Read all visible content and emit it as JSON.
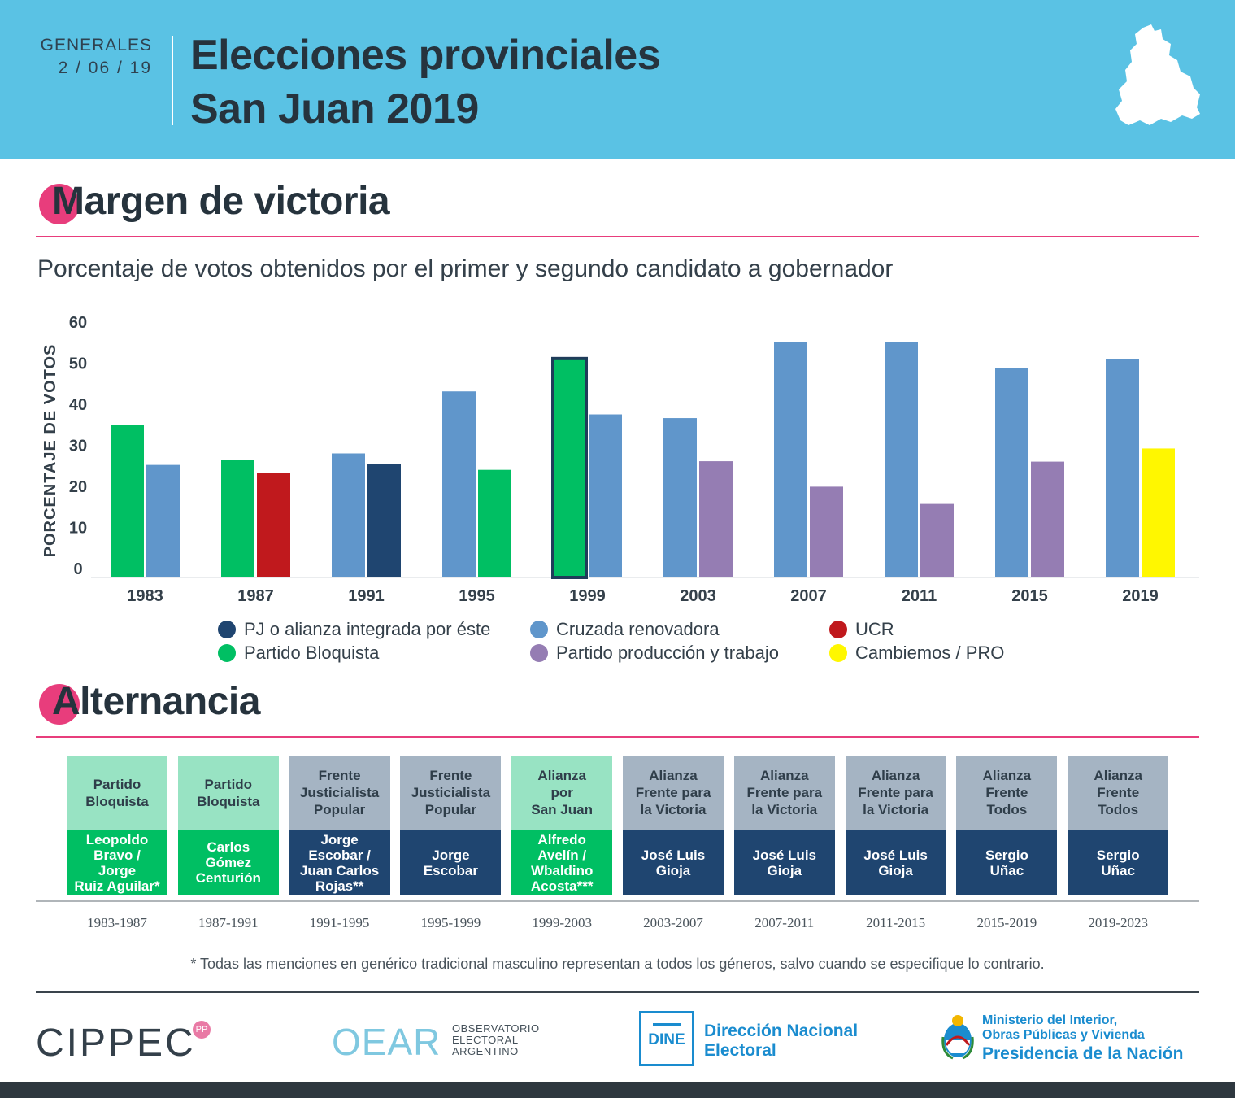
{
  "header": {
    "kicker": "GENERALES",
    "date": "2 / 06 / 19",
    "title_line1": "Elecciones provinciales",
    "title_line2": "San Juan 2019"
  },
  "section_margin": {
    "title": "Margen de victoria",
    "subtitle": "Porcentaje de votos obtenidos por el primer y segundo candidato a gobernador"
  },
  "colors": {
    "pj": "#1f4570",
    "cruzada": "#6096cb",
    "ucr": "#c0191d",
    "bloquista": "#00bf63",
    "produccion": "#957db3",
    "cambiemos": "#fff700",
    "header_bg": "#5ac2e4",
    "accent": "#e83d7c",
    "alt_bloquista_light": "#98e3c3",
    "alt_gray": "#a5b4c3"
  },
  "legend": [
    {
      "label": "PJ o alianza integrada por éste",
      "color": "#1f4570"
    },
    {
      "label": "Cruzada renovadora",
      "color": "#6096cb"
    },
    {
      "label": "UCR",
      "color": "#c0191d"
    },
    {
      "label": "Partido Bloquista",
      "color": "#00bf63"
    },
    {
      "label": "Partido producción y trabajo",
      "color": "#957db3"
    },
    {
      "label": "Cambiemos / PRO",
      "color": "#fff700"
    }
  ],
  "chart_data": {
    "type": "bar",
    "ylabel": "PORCENTAJE DE VOTOS",
    "xlabel": "",
    "ylim": [
      0,
      60
    ],
    "yticks": [
      0,
      10,
      20,
      30,
      40,
      50,
      60
    ],
    "categories": [
      "1983",
      "1987",
      "1991",
      "1995",
      "1999",
      "2003",
      "2007",
      "2011",
      "2015",
      "2019"
    ],
    "first": [
      {
        "value": 37.1,
        "party": "Partido Bloquista",
        "color": "#00bf63"
      },
      {
        "value": 28.6,
        "party": "Partido Bloquista",
        "color": "#00bf63"
      },
      {
        "value": 30.2,
        "party": "Cruzada renovadora",
        "color": "#6096cb"
      },
      {
        "value": 45.3,
        "party": "Cruzada renovadora",
        "color": "#6096cb"
      },
      {
        "value": 53.3,
        "party": "Partido Bloquista",
        "color": "#00bf63",
        "highlight": true
      },
      {
        "value": 38.8,
        "party": "Cruzada renovadora",
        "color": "#6096cb"
      },
      {
        "value": 57.3,
        "party": "Cruzada renovadora",
        "color": "#6096cb"
      },
      {
        "value": 57.3,
        "party": "Cruzada renovadora",
        "color": "#6096cb"
      },
      {
        "value": 51.0,
        "party": "Cruzada renovadora",
        "color": "#6096cb"
      },
      {
        "value": 53.1,
        "party": "Cruzada renovadora",
        "color": "#6096cb"
      }
    ],
    "second": [
      {
        "value": 27.4,
        "party": "Cruzada renovadora",
        "color": "#6096cb"
      },
      {
        "value": 25.5,
        "party": "UCR",
        "color": "#c0191d"
      },
      {
        "value": 27.6,
        "party": "PJ o alianza integrada por éste",
        "color": "#1f4570"
      },
      {
        "value": 26.2,
        "party": "Partido Bloquista",
        "color": "#00bf63"
      },
      {
        "value": 39.7,
        "party": "Cruzada renovadora",
        "color": "#6096cb"
      },
      {
        "value": 28.3,
        "party": "Partido producción y trabajo",
        "color": "#957db3"
      },
      {
        "value": 22.1,
        "party": "Partido producción y trabajo",
        "color": "#957db3"
      },
      {
        "value": 17.9,
        "party": "Partido producción y trabajo",
        "color": "#957db3"
      },
      {
        "value": 28.2,
        "party": "Partido producción y trabajo",
        "color": "#957db3"
      },
      {
        "value": 31.4,
        "party": "Cambiemos / PRO",
        "color": "#fff700"
      }
    ]
  },
  "section_alternancia": {
    "title": "Alternancia",
    "terms": [
      {
        "party": "Partido\nBloquista",
        "person": "Leopoldo\nBravo /\nJorge\nRuiz Aguilar*",
        "period": "1983-1987",
        "party_color": "#98e3c3",
        "person_color": "#00bf63"
      },
      {
        "party": "Partido\nBloquista",
        "person": "Carlos\nGómez\nCenturión",
        "period": "1987-1991",
        "party_color": "#98e3c3",
        "person_color": "#00bf63"
      },
      {
        "party": "Frente\nJusticialista\nPopular",
        "person": "Jorge\nEscobar /\nJuan Carlos\nRojas**",
        "period": "1991-1995",
        "party_color": "#a5b4c3",
        "person_color": "#1f4570"
      },
      {
        "party": "Frente\nJusticialista\nPopular",
        "person": "Jorge\nEscobar",
        "period": "1995-1999",
        "party_color": "#a5b4c3",
        "person_color": "#1f4570"
      },
      {
        "party": "Alianza\npor\nSan Juan",
        "person": "Alfredo\nAvelín /\nWbaldino\nAcosta***",
        "period": "1999-2003",
        "party_color": "#98e3c3",
        "person_color": "#00bf63"
      },
      {
        "party": "Alianza\nFrente para\nla Victoria",
        "person": "José Luis\nGioja",
        "period": "2003-2007",
        "party_color": "#a5b4c3",
        "person_color": "#1f4570"
      },
      {
        "party": "Alianza\nFrente para\nla Victoria",
        "person": "José Luis\nGioja",
        "period": "2007-2011",
        "party_color": "#a5b4c3",
        "person_color": "#1f4570"
      },
      {
        "party": "Alianza\nFrente para\nla Victoria",
        "person": "José Luis\nGioja",
        "period": "2011-2015",
        "party_color": "#a5b4c3",
        "person_color": "#1f4570"
      },
      {
        "party": "Alianza\nFrente\nTodos",
        "person": "Sergio\nUñac",
        "period": "2015-2019",
        "party_color": "#a5b4c3",
        "person_color": "#1f4570"
      },
      {
        "party": "Alianza\nFrente\nTodos",
        "person": "Sergio\nUñac",
        "period": "2019-2023",
        "party_color": "#a5b4c3",
        "person_color": "#1f4570"
      }
    ],
    "footnote": "* Todas las menciones en genérico tradicional masculino representan a todos los géneros, salvo cuando se especifique lo contrario."
  },
  "logos": {
    "cippec": "CIPPEC",
    "cippec_badge": "PP",
    "oear": "OEAR",
    "oear_sub": "OBSERVATORIO\nELECTORAL\nARGENTINO",
    "dine_short": "DINE",
    "dine_name": "Dirección Nacional\nElectoral",
    "ministerio": "Ministerio del Interior,\nObras Públicas y Vivienda",
    "presidencia": "Presidencia de la Nación"
  }
}
